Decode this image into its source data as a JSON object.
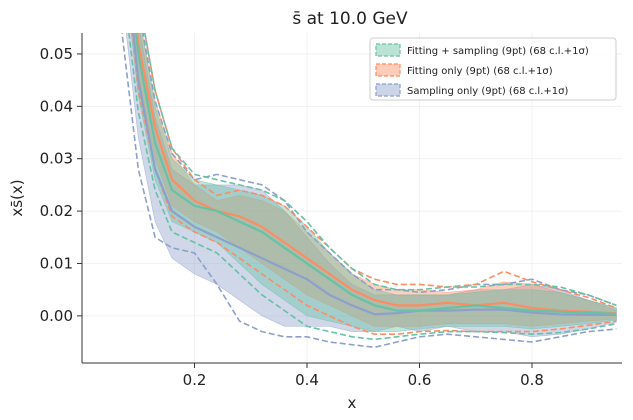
{
  "chart_data": {
    "type": "line",
    "title": "s̄ at 10.0 GeV",
    "xlabel": "x",
    "ylabel": "xs̄(x)",
    "xlim": [
      0.0,
      0.96
    ],
    "ylim": [
      -0.009,
      0.054
    ],
    "xticks": [
      "0.2",
      "0.4",
      "0.6",
      "0.8"
    ],
    "yticks": [
      "0.00",
      "0.01",
      "0.02",
      "0.03",
      "0.04",
      "0.05"
    ],
    "grid": true,
    "legend_position": "top-right",
    "x": [
      0.07,
      0.1,
      0.13,
      0.16,
      0.2,
      0.24,
      0.28,
      0.32,
      0.36,
      0.4,
      0.44,
      0.48,
      0.52,
      0.56,
      0.6,
      0.65,
      0.7,
      0.75,
      0.8,
      0.85,
      0.9,
      0.95
    ],
    "series": [
      {
        "name": "Fitting + sampling (9pt) (68 c.l.+1σ)",
        "color": "#66c2a5",
        "central": [
          0.08,
          0.05,
          0.033,
          0.024,
          0.021,
          0.02,
          0.018,
          0.016,
          0.013,
          0.01,
          0.007,
          0.004,
          0.002,
          0.001,
          0.001,
          0.0015,
          0.002,
          0.0015,
          0.001,
          0.0008,
          0.0006,
          0.0004
        ],
        "band_upper": [
          0.09,
          0.058,
          0.04,
          0.03,
          0.026,
          0.025,
          0.024,
          0.023,
          0.021,
          0.017,
          0.012,
          0.008,
          0.005,
          0.004,
          0.004,
          0.004,
          0.0045,
          0.005,
          0.005,
          0.0045,
          0.003,
          0.0015
        ],
        "band_lower": [
          0.07,
          0.042,
          0.026,
          0.018,
          0.016,
          0.014,
          0.01,
          0.006,
          0.003,
          0.0,
          -0.001,
          -0.002,
          -0.003,
          -0.003,
          -0.0025,
          -0.002,
          -0.002,
          -0.002,
          -0.0025,
          -0.002,
          -0.0015,
          -0.0008
        ],
        "dashed_upper": [
          0.095,
          0.061,
          0.043,
          0.032,
          0.027,
          0.026,
          0.025,
          0.024,
          0.022,
          0.018,
          0.013,
          0.009,
          0.006,
          0.005,
          0.005,
          0.0055,
          0.0055,
          0.006,
          0.006,
          0.0055,
          0.004,
          0.002
        ],
        "dashed_lower": [
          0.066,
          0.039,
          0.024,
          0.016,
          0.014,
          0.012,
          0.008,
          0.004,
          0.001,
          -0.002,
          -0.003,
          -0.004,
          -0.0045,
          -0.004,
          -0.0035,
          -0.003,
          -0.003,
          -0.0032,
          -0.0035,
          -0.0032,
          -0.0025,
          -0.0015
        ]
      },
      {
        "name": "Fitting only (9pt) (68 c.l.+1σ)",
        "color": "#fc8d62",
        "central": [
          0.085,
          0.052,
          0.036,
          0.026,
          0.022,
          0.02,
          0.019,
          0.017,
          0.014,
          0.011,
          0.008,
          0.005,
          0.003,
          0.002,
          0.002,
          0.0025,
          0.002,
          0.0025,
          0.0015,
          0.001,
          0.0008,
          0.0005
        ],
        "band_upper": [
          0.092,
          0.058,
          0.041,
          0.031,
          0.025,
          0.022,
          0.023,
          0.022,
          0.02,
          0.016,
          0.012,
          0.008,
          0.006,
          0.005,
          0.005,
          0.0045,
          0.005,
          0.0065,
          0.006,
          0.0045,
          0.003,
          0.001
        ],
        "band_lower": [
          0.078,
          0.046,
          0.03,
          0.021,
          0.018,
          0.016,
          0.013,
          0.01,
          0.007,
          0.004,
          0.002,
          0.0,
          -0.002,
          -0.002,
          -0.002,
          -0.0015,
          -0.0015,
          -0.0015,
          -0.002,
          -0.0015,
          -0.001,
          -0.0006
        ],
        "dashed_upper": [
          0.096,
          0.061,
          0.043,
          0.032,
          0.026,
          0.023,
          0.024,
          0.023,
          0.021,
          0.017,
          0.013,
          0.009,
          0.007,
          0.006,
          0.006,
          0.0055,
          0.006,
          0.0085,
          0.0065,
          0.005,
          0.0035,
          0.0015
        ],
        "dashed_lower": [
          0.075,
          0.043,
          0.028,
          0.019,
          0.016,
          0.014,
          0.011,
          0.008,
          0.005,
          0.002,
          0.0,
          -0.002,
          -0.0035,
          -0.0035,
          -0.003,
          -0.0028,
          -0.003,
          -0.003,
          -0.003,
          -0.0025,
          -0.0018,
          -0.001
        ]
      },
      {
        "name": "Sampling only (9pt) (68 c.l.+1σ)",
        "color": "#8da0cb",
        "central": [
          0.075,
          0.045,
          0.028,
          0.02,
          0.017,
          0.015,
          0.013,
          0.011,
          0.009,
          0.007,
          0.004,
          0.002,
          0.0003,
          0.0005,
          0.001,
          0.001,
          0.0012,
          0.0012,
          0.0006,
          0.0003,
          0.0002,
          0.0002
        ],
        "band_upper": [
          0.088,
          0.056,
          0.038,
          0.028,
          0.025,
          0.025,
          0.025,
          0.024,
          0.02,
          0.015,
          0.01,
          0.006,
          0.004,
          0.004,
          0.004,
          0.004,
          0.005,
          0.005,
          0.006,
          0.005,
          0.003,
          0.0015
        ],
        "band_lower": [
          0.062,
          0.034,
          0.018,
          0.011,
          0.008,
          0.006,
          0.003,
          0.0,
          -0.002,
          -0.002,
          -0.002,
          -0.003,
          -0.003,
          -0.002,
          -0.003,
          -0.002,
          -0.003,
          -0.003,
          -0.004,
          -0.0035,
          -0.0025,
          -0.0012
        ],
        "dashed_upper": [
          0.092,
          0.059,
          0.041,
          0.031,
          0.026,
          0.027,
          0.026,
          0.025,
          0.022,
          0.016,
          0.012,
          0.008,
          0.005,
          0.005,
          0.0045,
          0.005,
          0.006,
          0.006,
          0.007,
          0.005,
          0.004,
          0.002
        ],
        "dashed_lower": [
          0.055,
          0.028,
          0.015,
          0.013,
          0.012,
          0.006,
          -0.001,
          -0.003,
          -0.004,
          -0.004,
          -0.005,
          -0.0055,
          -0.006,
          -0.005,
          -0.004,
          -0.0035,
          -0.004,
          -0.0045,
          -0.005,
          -0.004,
          -0.003,
          -0.0025
        ]
      }
    ]
  }
}
